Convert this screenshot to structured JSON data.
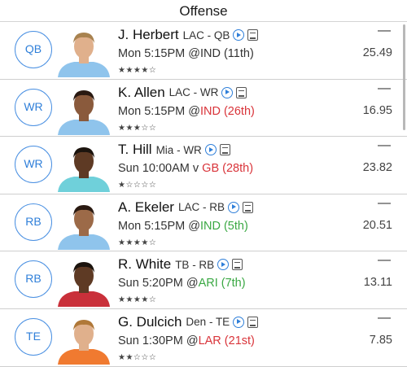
{
  "header": {
    "title": "Offense"
  },
  "players": [
    {
      "pos": "QB",
      "name": "J. Herbert",
      "team": "LAC - QB",
      "game_prefix": "Mon 5:15PM @",
      "opp_text": "IND (11th)",
      "opp_color": "plain",
      "stars": "★★★★☆",
      "dash": "—",
      "points": "25.49",
      "jersey": "#8fc4ec",
      "skin": "#e0b08c",
      "hair": "#a8824f"
    },
    {
      "pos": "WR",
      "name": "K. Allen",
      "team": "LAC - WR",
      "game_prefix": "Mon 5:15PM @",
      "opp_text": "IND (26th)",
      "opp_color": "red",
      "stars": "★★★☆☆",
      "dash": "—",
      "points": "16.95",
      "jersey": "#8fc4ec",
      "skin": "#8a5a3c",
      "hair": "#2a1a12"
    },
    {
      "pos": "WR",
      "name": "T. Hill",
      "team": "Mia - WR",
      "game_prefix": "Sun 10:00AM v ",
      "opp_text": "GB (28th)",
      "opp_color": "red",
      "stars": "★☆☆☆☆",
      "dash": "—",
      "points": "23.82",
      "jersey": "#6fd0da",
      "skin": "#5e3a24",
      "hair": "#1c140e"
    },
    {
      "pos": "RB",
      "name": "A. Ekeler",
      "team": "LAC - RB",
      "game_prefix": "Mon 5:15PM @",
      "opp_text": "IND (5th)",
      "opp_color": "green",
      "stars": "★★★★☆",
      "dash": "—",
      "points": "20.51",
      "jersey": "#8fc4ec",
      "skin": "#9c6a48",
      "hair": "#2a1a12"
    },
    {
      "pos": "RB",
      "name": "R. White",
      "team": "TB - RB",
      "game_prefix": "Sun 5:20PM @",
      "opp_text": "ARI (7th)",
      "opp_color": "green",
      "stars": "★★★★☆",
      "dash": "—",
      "points": "13.11",
      "jersey": "#c9303a",
      "skin": "#5e3a24",
      "hair": "#1c140e"
    },
    {
      "pos": "TE",
      "name": "G. Dulcich",
      "team": "Den - TE",
      "game_prefix": "Sun 1:30PM @",
      "opp_text": "LAR (21st)",
      "opp_color": "red",
      "stars": "★★☆☆☆",
      "dash": "—",
      "points": "7.85",
      "jersey": "#f07a30",
      "skin": "#e0b08c",
      "hair": "#b07838"
    }
  ],
  "colors": {
    "accent": "#2f7fd9",
    "red": "#d9343a",
    "green": "#3aa843"
  },
  "icons": {
    "play": "play-circle-icon",
    "notes": "notes-icon"
  }
}
